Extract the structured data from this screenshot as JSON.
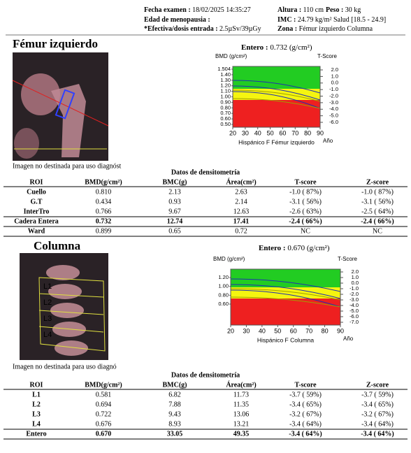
{
  "header": {
    "exam_date": {
      "label": "Fecha examen :",
      "value": "18/02/2025 14:35:27"
    },
    "height": {
      "label": "Altura :",
      "value": "110 cm"
    },
    "weight": {
      "label": "Peso :",
      "value": "30 kg"
    },
    "menopause": {
      "label": "Edad de menopausia :",
      "value": ""
    },
    "bmi": {
      "label": "IMC :",
      "value": "24.79 kg/m² Salud [18.5 - 24.9]"
    },
    "dose": {
      "label": "*Efectiva/dosis entrada :",
      "value": "2.5µSv/39µGy"
    },
    "zone": {
      "label": "Zona :",
      "value": "Fémur izquierdo Columna"
    }
  },
  "sections": [
    {
      "title": "Fémur izquierdo",
      "image_labels": [],
      "caption": "Imagen no destinada para uso diagnóst",
      "total": {
        "label": "Entero :",
        "value": "0.732 (g/cm²)"
      },
      "chart": {
        "y_label": "BMD (g/cm²)",
        "t_label": "T-Score",
        "y_ticks": [
          "1.504",
          "1.40",
          "1.30",
          "1.20",
          "1.10",
          "1.00",
          "0.90",
          "0.80",
          "0.70",
          "0.60",
          "0.50"
        ],
        "t_ticks": [
          "2.0",
          "1.0",
          "0.0",
          "-1.0",
          "-2.0",
          "-3.0",
          "-4.0",
          "-5.0",
          "-6.0"
        ],
        "x_ticks": [
          "20",
          "30",
          "40",
          "50",
          "60",
          "70",
          "80",
          "90"
        ],
        "x_label": "Hispánico F Fémur izquierdo",
        "age_label": "Año"
      },
      "table": {
        "title": "Datos de densitometría",
        "columns": [
          "ROI",
          "BMD(g/cm²)",
          "BMC(g)",
          "Área(cm²)",
          "T-score",
          "Z-score"
        ],
        "rows": [
          [
            "Cuello",
            "0.810",
            "2.13",
            "2.63",
            "-1.0 ( 87%)",
            "-1.0 ( 87%)"
          ],
          [
            "G.T",
            "0.434",
            "0.93",
            "2.14",
            "-3.1 ( 56%)",
            "-3.1 ( 56%)"
          ],
          [
            "InterTro",
            "0.766",
            "9.67",
            "12.63",
            "-2.6 ( 63%)",
            "-2.5 ( 64%)"
          ],
          [
            "Cadera Entera",
            "0.732",
            "12.74",
            "17.41",
            "-2.4 ( 66%)",
            "-2.4 ( 66%)"
          ],
          [
            "Ward",
            "0.899",
            "0.65",
            "0.72",
            "NC",
            "NC"
          ]
        ]
      }
    },
    {
      "title": "Columna",
      "image_labels": [
        "L1",
        "L2",
        "L3",
        "L4"
      ],
      "caption": "Imagen no destinada para uso diagnó",
      "total": {
        "label": "Entero :",
        "value": "0.670 (g/cm²)"
      },
      "chart": {
        "y_label": "BMD (g/cm²)",
        "t_label": "T-Score",
        "y_ticks": [
          "1.20",
          "1.00",
          "0.80",
          "0.60"
        ],
        "t_ticks": [
          "2.0",
          "1.0",
          "0.0",
          "-1.0",
          "-2.0",
          "-3.0",
          "-4.0",
          "-5.0",
          "-6.0",
          "-7.0"
        ],
        "x_ticks": [
          "20",
          "30",
          "40",
          "50",
          "60",
          "70",
          "80",
          "90"
        ],
        "x_label": "Hispánico F Columna",
        "age_label": "Año"
      },
      "table": {
        "title": "Datos de densitometría",
        "columns": [
          "ROI",
          "BMD(g/cm²)",
          "BMC(g)",
          "Área(cm²)",
          "T-score",
          "Z-score"
        ],
        "rows": [
          [
            "L1",
            "0.581",
            "6.82",
            "11.73",
            "-3.7 ( 59%)",
            "-3.7 ( 59%)"
          ],
          [
            "L2",
            "0.694",
            "7.88",
            "11.35",
            "-3.4 ( 65%)",
            "-3.4 ( 65%)"
          ],
          [
            "L3",
            "0.722",
            "9.43",
            "13.06",
            "-3.2 ( 67%)",
            "-3.2 ( 67%)"
          ],
          [
            "L4",
            "0.676",
            "8.93",
            "13.21",
            "-3.4 ( 64%)",
            "-3.4 ( 64%)"
          ],
          [
            "Entero",
            "0.670",
            "33.05",
            "49.35",
            "-3.4 ( 64%)",
            "-3.4 ( 64%)"
          ]
        ]
      }
    }
  ]
}
